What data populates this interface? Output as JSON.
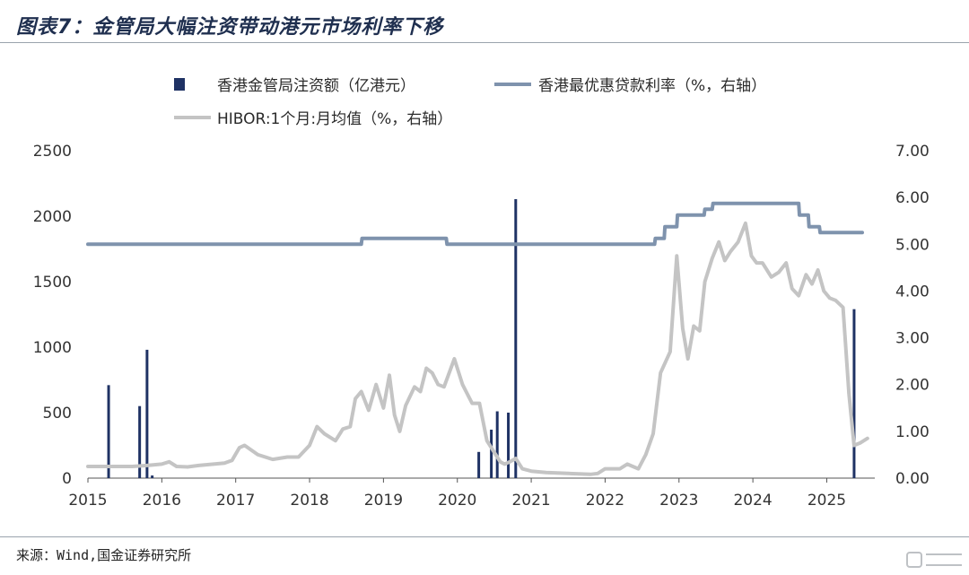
{
  "header": {
    "title": "图表7：金管局大幅注资带动港元市场利率下移"
  },
  "footer": {
    "source": "来源：Wind,国金证券研究所"
  },
  "colors": {
    "bar": "#1f3264",
    "prime": "#7f93ad",
    "hibor": "#c4c4c4",
    "axis": "#555555"
  },
  "chart_data": {
    "type": "bar+line",
    "title": "图表7：金管局大幅注资带动港元市场利率下移",
    "x_ticks": [
      "2015",
      "2016",
      "2017",
      "2018",
      "2019",
      "2020",
      "2021",
      "2022",
      "2023",
      "2024",
      "2025"
    ],
    "xlim": [
      2015.0,
      2025.65
    ],
    "y_left": {
      "lim": [
        0,
        2500
      ],
      "ticks": [
        "0",
        "500",
        "1000",
        "1500",
        "2000",
        "2500"
      ]
    },
    "y_right": {
      "lim": [
        0,
        7
      ],
      "ticks": [
        "0.00",
        "1.00",
        "2.00",
        "3.00",
        "4.00",
        "5.00",
        "6.00",
        "7.00"
      ]
    },
    "legend_position": "top-center",
    "series": [
      {
        "name": "香港金管局注资额（亿港元）",
        "type": "bar",
        "axis": "left",
        "x": [
          2015.28,
          2015.7,
          2015.8,
          2015.87,
          2020.29,
          2020.46,
          2020.54,
          2020.69,
          2020.79,
          2025.37
        ],
        "y": [
          710,
          550,
          980,
          20,
          200,
          370,
          510,
          500,
          2130,
          1290
        ]
      },
      {
        "name": "香港最优惠贷款利率（%，右轴）",
        "type": "line",
        "axis": "right",
        "x": [
          2015.0,
          2018.7,
          2018.71,
          2019.85,
          2019.86,
          2022.67,
          2022.68,
          2022.8,
          2022.81,
          2022.97,
          2022.98,
          2023.34,
          2023.35,
          2023.45,
          2023.46,
          2023.55,
          2023.56,
          2024.62,
          2024.63,
          2024.75,
          2024.76,
          2024.9,
          2024.91,
          2025.48
        ],
        "y": [
          5.0,
          5.0,
          5.125,
          5.125,
          5.0,
          5.0,
          5.125,
          5.125,
          5.375,
          5.375,
          5.625,
          5.625,
          5.75,
          5.75,
          5.875,
          5.875,
          5.875,
          5.875,
          5.625,
          5.625,
          5.375,
          5.375,
          5.25,
          5.25
        ]
      },
      {
        "name": "HIBOR:1个月:月均值（%，右轴）",
        "type": "line",
        "axis": "right",
        "x": [
          2015.0,
          2015.3,
          2015.6,
          2015.8,
          2016.0,
          2016.1,
          2016.2,
          2016.35,
          2016.5,
          2016.7,
          2016.85,
          2016.95,
          2017.05,
          2017.12,
          2017.3,
          2017.5,
          2017.7,
          2017.85,
          2018.0,
          2018.1,
          2018.2,
          2018.35,
          2018.45,
          2018.55,
          2018.62,
          2018.7,
          2018.8,
          2018.9,
          2019.0,
          2019.08,
          2019.15,
          2019.22,
          2019.3,
          2019.42,
          2019.5,
          2019.58,
          2019.66,
          2019.74,
          2019.82,
          2019.96,
          2020.07,
          2020.2,
          2020.3,
          2020.4,
          2020.5,
          2020.58,
          2020.64,
          2020.71,
          2020.79,
          2020.88,
          2021.0,
          2021.2,
          2021.5,
          2021.8,
          2021.9,
          2022.0,
          2022.2,
          2022.3,
          2022.45,
          2022.55,
          2022.65,
          2022.75,
          2022.88,
          2022.97,
          2023.05,
          2023.12,
          2023.2,
          2023.28,
          2023.35,
          2023.45,
          2023.54,
          2023.62,
          2023.7,
          2023.8,
          2023.9,
          2023.98,
          2024.05,
          2024.13,
          2024.25,
          2024.35,
          2024.45,
          2024.53,
          2024.62,
          2024.72,
          2024.8,
          2024.88,
          2024.96,
          2025.04,
          2025.12,
          2025.22,
          2025.3,
          2025.37,
          2025.45,
          2025.55
        ],
        "y": [
          0.25,
          0.25,
          0.25,
          0.27,
          0.3,
          0.35,
          0.25,
          0.24,
          0.27,
          0.3,
          0.32,
          0.38,
          0.65,
          0.7,
          0.5,
          0.4,
          0.45,
          0.45,
          0.7,
          1.1,
          0.95,
          0.8,
          1.05,
          1.1,
          1.7,
          1.85,
          1.45,
          2.0,
          1.5,
          2.2,
          1.35,
          1.0,
          1.55,
          1.95,
          1.85,
          2.35,
          2.25,
          2.0,
          1.95,
          2.55,
          2.0,
          1.6,
          1.6,
          0.8,
          0.55,
          0.35,
          0.3,
          0.35,
          0.42,
          0.2,
          0.15,
          0.12,
          0.1,
          0.08,
          0.1,
          0.2,
          0.2,
          0.3,
          0.2,
          0.5,
          0.95,
          2.25,
          2.7,
          4.75,
          3.2,
          2.55,
          3.25,
          3.15,
          4.2,
          4.7,
          5.05,
          4.65,
          4.85,
          5.05,
          5.45,
          4.75,
          4.6,
          4.6,
          4.3,
          4.4,
          4.6,
          4.05,
          3.9,
          4.35,
          4.15,
          4.45,
          4.0,
          3.85,
          3.8,
          3.65,
          1.8,
          0.7,
          0.75,
          0.85
        ]
      }
    ]
  }
}
